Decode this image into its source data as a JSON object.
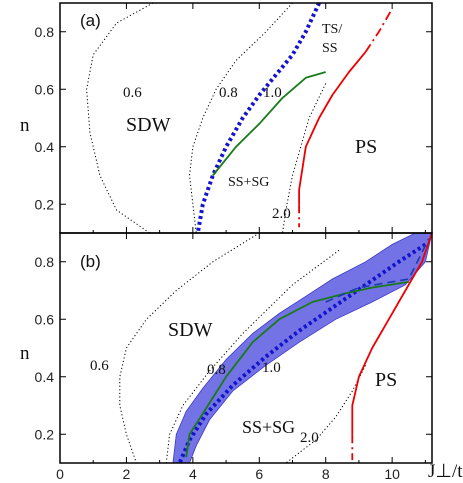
{
  "chart_data": {
    "type": "line",
    "xlabel": "J⊥/t",
    "ylabel": "n",
    "xlim": [
      0,
      11.2
    ],
    "ylim": [
      0.1,
      0.9
    ],
    "x_ticks": [
      "0",
      "2",
      "4",
      "6",
      "8",
      "10"
    ],
    "y_ticks": [
      "0.2",
      "0.4",
      "0.6",
      "0.8"
    ],
    "colors": {
      "ss_sg": "#1a7a1a",
      "ps": "#ee0000",
      "contour_1_0": "#1414cc",
      "band": "#5a5ae0"
    },
    "panels": [
      {
        "panel_label": "(a)",
        "regions": [
          "SDW",
          "PS",
          "SS+SG",
          "TS/\nSS"
        ],
        "contour_labels": [
          "0.6",
          "0.8",
          "1.0",
          "2.0"
        ],
        "series": [
          {
            "key": "contour_0.6",
            "style": "dotted",
            "points": [
              [
                2.8,
                0.9
              ],
              [
                1.7,
                0.83
              ],
              [
                1.0,
                0.72
              ],
              [
                0.8,
                0.6
              ],
              [
                0.9,
                0.45
              ],
              [
                1.2,
                0.3
              ],
              [
                1.7,
                0.18
              ],
              [
                2.7,
                0.1
              ]
            ]
          },
          {
            "key": "contour_0.8",
            "style": "dotted",
            "points": [
              [
                7.0,
                0.9
              ],
              [
                6.2,
                0.8
              ],
              [
                5.3,
                0.7
              ],
              [
                4.7,
                0.6
              ],
              [
                4.3,
                0.5
              ],
              [
                4.0,
                0.4
              ],
              [
                3.9,
                0.3
              ],
              [
                4.0,
                0.2
              ],
              [
                4.1,
                0.1
              ]
            ]
          },
          {
            "key": "contour_1.0",
            "style": "thick-dotted",
            "points": [
              [
                7.8,
                0.9
              ],
              [
                7.4,
                0.8
              ],
              [
                7.0,
                0.72
              ],
              [
                6.5,
                0.65
              ],
              [
                6.0,
                0.58
              ],
              [
                5.5,
                0.5
              ],
              [
                5.0,
                0.4
              ],
              [
                4.6,
                0.3
              ],
              [
                4.3,
                0.2
              ],
              [
                4.15,
                0.1
              ]
            ]
          },
          {
            "key": "contour_2.0",
            "style": "dotted",
            "points": [
              [
                8.0,
                0.62
              ],
              [
                7.5,
                0.5
              ],
              [
                7.0,
                0.3
              ],
              [
                6.8,
                0.18
              ],
              [
                6.7,
                0.1
              ]
            ]
          },
          {
            "key": "ss_sg_boundary",
            "style": "solid",
            "points": [
              [
                4.6,
                0.3
              ],
              [
                5.3,
                0.4
              ],
              [
                6.0,
                0.48
              ],
              [
                6.7,
                0.57
              ],
              [
                7.4,
                0.64
              ],
              [
                8.0,
                0.66
              ]
            ]
          },
          {
            "key": "ps_boundary",
            "style": "solid",
            "points": [
              [
                7.2,
                0.2
              ],
              [
                7.2,
                0.25
              ],
              [
                7.4,
                0.4
              ],
              [
                7.8,
                0.5
              ],
              [
                8.2,
                0.58
              ],
              [
                8.7,
                0.66
              ],
              [
                9.2,
                0.73
              ]
            ]
          },
          {
            "key": "ps_boundary_extrapolated",
            "style": "dashdot",
            "points": [
              [
                9.2,
                0.73
              ],
              [
                9.6,
                0.8
              ],
              [
                10.0,
                0.88
              ]
            ]
          },
          {
            "key": "ps_boundary_bottom",
            "style": "dashdot",
            "points": [
              [
                7.2,
                0.2
              ],
              [
                7.2,
                0.12
              ]
            ]
          }
        ]
      },
      {
        "panel_label": "(b)",
        "regions": [
          "SDW",
          "PS",
          "SS+SG"
        ],
        "contour_labels": [
          "0.6",
          "0.8",
          "1.0",
          "2.0"
        ],
        "series": [
          {
            "key": "contour_0.6",
            "style": "dotted",
            "points": [
              [
                6.0,
                0.9
              ],
              [
                4.6,
                0.8
              ],
              [
                3.5,
                0.7
              ],
              [
                2.6,
                0.6
              ],
              [
                2.0,
                0.5
              ],
              [
                1.8,
                0.4
              ],
              [
                1.8,
                0.3
              ],
              [
                2.0,
                0.2
              ],
              [
                2.3,
                0.1
              ]
            ]
          },
          {
            "key": "contour_0.8",
            "style": "dotted",
            "points": [
              [
                8.4,
                0.84
              ],
              [
                7.0,
                0.72
              ],
              [
                5.5,
                0.55
              ],
              [
                4.5,
                0.42
              ],
              [
                3.7,
                0.3
              ],
              [
                3.3,
                0.2
              ],
              [
                3.2,
                0.1
              ]
            ]
          },
          {
            "key": "contour_1.0",
            "style": "thick-dotted",
            "points": [
              [
                11.0,
                0.86
              ],
              [
                10.2,
                0.8
              ],
              [
                9.2,
                0.72
              ],
              [
                8.2,
                0.64
              ],
              [
                7.2,
                0.56
              ],
              [
                6.2,
                0.47
              ],
              [
                5.2,
                0.37
              ],
              [
                4.4,
                0.27
              ],
              [
                3.9,
                0.18
              ],
              [
                3.6,
                0.1
              ]
            ]
          },
          {
            "key": "contour_2.0",
            "style": "dotted",
            "points": [
              [
                9.2,
                0.44
              ],
              [
                8.8,
                0.35
              ],
              [
                8.3,
                0.26
              ],
              [
                7.7,
                0.18
              ],
              [
                6.8,
                0.1
              ]
            ]
          },
          {
            "key": "ss_sg_boundary",
            "style": "solid",
            "points": [
              [
                3.8,
                0.12
              ],
              [
                3.9,
                0.2
              ],
              [
                4.4,
                0.29
              ],
              [
                5.0,
                0.4
              ],
              [
                5.8,
                0.52
              ],
              [
                6.6,
                0.6
              ],
              [
                7.6,
                0.66
              ],
              [
                8.6,
                0.69
              ],
              [
                9.4,
                0.71
              ],
              [
                10.5,
                0.73
              ]
            ]
          },
          {
            "key": "ss_sg_boundary_dashed",
            "style": "dashed",
            "points": [
              [
                8.0,
                0.66
              ],
              [
                9.0,
                0.71
              ],
              [
                10.5,
                0.74
              ],
              [
                11.1,
                0.88
              ]
            ]
          },
          {
            "key": "ps_boundary",
            "style": "solid",
            "points": [
              [
                8.8,
                0.2
              ],
              [
                8.8,
                0.3
              ],
              [
                9.0,
                0.4
              ],
              [
                9.4,
                0.5
              ],
              [
                9.9,
                0.6
              ],
              [
                10.4,
                0.7
              ],
              [
                10.9,
                0.8
              ],
              [
                11.2,
                0.9
              ]
            ]
          },
          {
            "key": "ps_boundary_bottom",
            "style": "dashdot",
            "points": [
              [
                8.8,
                0.2
              ],
              [
                8.8,
                0.11
              ]
            ]
          }
        ],
        "band": [
          [
            3.4,
            0.1
          ],
          [
            3.5,
            0.2
          ],
          [
            3.8,
            0.28
          ],
          [
            4.3,
            0.36
          ],
          [
            5.0,
            0.46
          ],
          [
            5.8,
            0.55
          ],
          [
            6.6,
            0.62
          ],
          [
            7.4,
            0.68
          ],
          [
            8.2,
            0.74
          ],
          [
            9.2,
            0.8
          ],
          [
            10.0,
            0.86
          ],
          [
            10.7,
            0.9
          ],
          [
            11.2,
            0.9
          ],
          [
            11.0,
            0.8
          ],
          [
            10.4,
            0.72
          ],
          [
            9.4,
            0.66
          ],
          [
            8.3,
            0.6
          ],
          [
            7.2,
            0.52
          ],
          [
            6.2,
            0.44
          ],
          [
            5.2,
            0.35
          ],
          [
            4.5,
            0.25
          ],
          [
            4.1,
            0.16
          ],
          [
            3.9,
            0.1
          ]
        ]
      }
    ]
  }
}
